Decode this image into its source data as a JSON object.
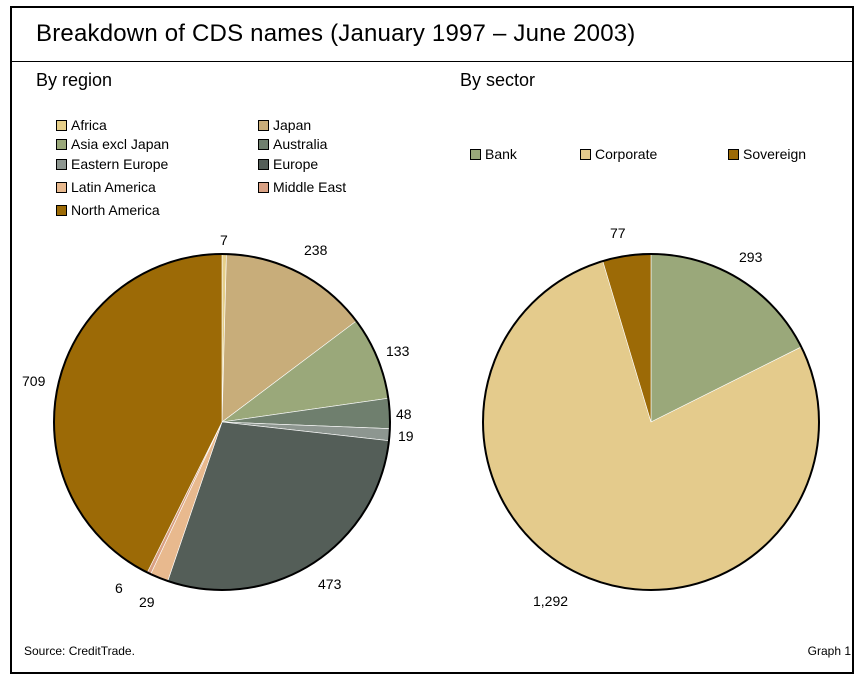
{
  "title": "Breakdown of CDS names (January 1997 – June 2003)",
  "footer": {
    "source": "Source: CreditTrade.",
    "graph": "Graph 1"
  },
  "chart_data": [
    {
      "type": "pie",
      "title": "By region",
      "categories": [
        "Africa",
        "Japan",
        "Asia excl Japan",
        "Australia",
        "Eastern Europe",
        "Europe",
        "Latin America",
        "Middle East",
        "North America"
      ],
      "values": [
        7,
        238,
        133,
        48,
        19,
        473,
        29,
        6,
        709
      ],
      "labels": [
        "7",
        "238",
        "133",
        "48",
        "19",
        "473",
        "29",
        "6",
        "709"
      ],
      "colors": [
        "#e6cf8a",
        "#c8ad7a",
        "#9aa87a",
        "#6f7f6e",
        "#8d9690",
        "#545e58",
        "#e8b98e",
        "#d9a184",
        "#9c6a06"
      ],
      "legend": "top, two columns"
    },
    {
      "type": "pie",
      "title": "By sector",
      "categories": [
        "Bank",
        "Corporate",
        "Sovereign"
      ],
      "values": [
        293,
        1292,
        77
      ],
      "labels": [
        "293",
        "1,292",
        "77"
      ],
      "colors": [
        "#9aa87a",
        "#e4cb8c",
        "#9c6a06"
      ],
      "legend": "top, single row"
    }
  ]
}
